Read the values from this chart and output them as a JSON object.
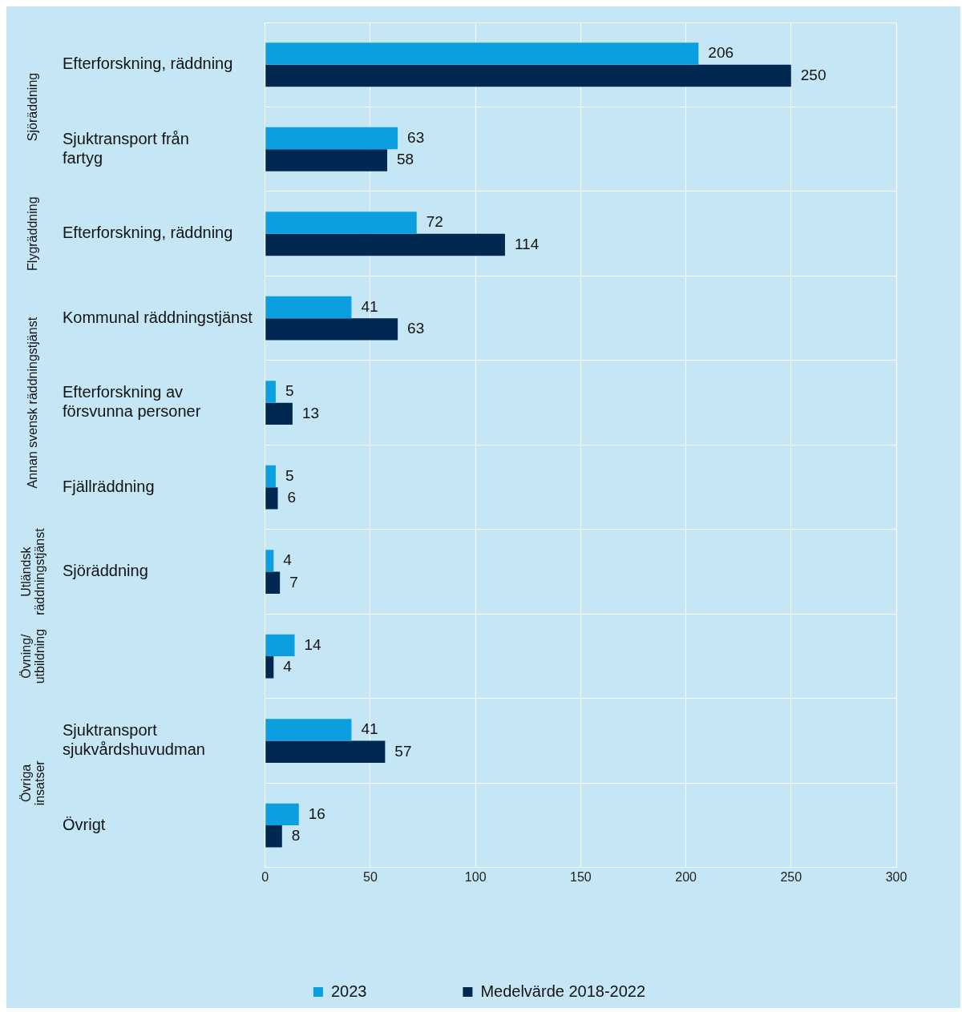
{
  "chart_data": {
    "type": "bar",
    "orientation": "horizontal",
    "categories": [
      "Efterforskning, räddning",
      "Sjuktransport från fartyg",
      "Efterforskning, räddning",
      "Kommunal räddningstjänst",
      "Efterforskning av försvunna personer",
      "Fjällräddning",
      "Sjöräddning",
      null,
      "Sjuktransport sjukvårdshuvudman",
      "Övrigt"
    ],
    "series": [
      {
        "name": "2023",
        "color": "#0b9fe0",
        "values": [
          206,
          63,
          72,
          41,
          5,
          5,
          4,
          14,
          41,
          16
        ]
      },
      {
        "name": "Medelvärde 2018-2022",
        "color": "#002850",
        "values": [
          250,
          58,
          114,
          63,
          13,
          6,
          7,
          4,
          57,
          8
        ]
      }
    ],
    "xlim": [
      0,
      300
    ],
    "xticks": [
      0,
      50,
      100,
      150,
      200,
      250,
      300
    ],
    "annotations": [
      "Sjöräddning",
      "Flygräddning",
      "Annan svensk räddningstjänst",
      "Utländsk räddningstjänst",
      "Övning/ utbildning",
      "Övriga insatser"
    ],
    "data_labels": true,
    "grid": true,
    "legend": "bottom"
  }
}
